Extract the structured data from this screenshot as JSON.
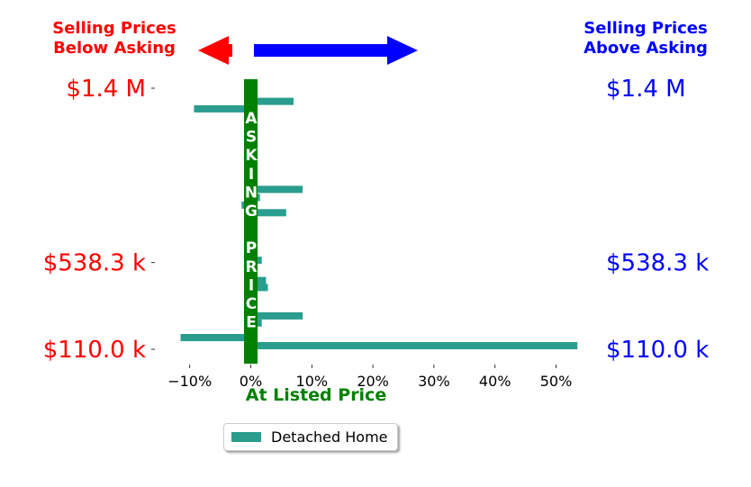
{
  "header": {
    "left_line1": "Selling Prices",
    "left_line2": "Below Asking",
    "right_line1": "Selling Prices",
    "right_line2": "Above Asking"
  },
  "center_label": {
    "vertical_text": "ASKING PRICE",
    "bottom_text": "At Listed Price"
  },
  "colors": {
    "bar": "#2a9d8f",
    "center_band": "#008000",
    "below": "#ff0000",
    "above": "#0000ff",
    "arrow_left": "#ff0000",
    "arrow_right": "#0000ff"
  },
  "legend": {
    "label": "Detached Home"
  },
  "chart_data": {
    "type": "bar",
    "orientation": "horizontal",
    "xlabel": "At Listed Price",
    "xlim": [
      -14.5,
      53.5
    ],
    "xticks": [
      -10,
      0,
      10,
      20,
      30,
      40,
      50
    ],
    "xtick_labels": [
      "−10%",
      "0%",
      "10%",
      "20%",
      "30%",
      "40%",
      "50%"
    ],
    "ylim": [
      100000,
      1500000
    ],
    "yticks": [
      1400000,
      538300,
      110000
    ],
    "ytick_labels_left": [
      "$1.4 M",
      "$538.3 k",
      "$110.0 k"
    ],
    "ytick_labels_right": [
      "$1.4 M",
      "$538.3 k",
      "$110.0 k"
    ],
    "series": [
      {
        "name": "Detached Home",
        "points": [
          {
            "price": 1425000,
            "pct": 0.3
          },
          {
            "price": 1395000,
            "pct": 0.5
          },
          {
            "price": 1365000,
            "pct": 0.2
          },
          {
            "price": 1335000,
            "pct": 7.0
          },
          {
            "price": 1298000,
            "pct": -9.3
          },
          {
            "price": 1245000,
            "pct": 0.4
          },
          {
            "price": 1165000,
            "pct": 0.3
          },
          {
            "price": 1110000,
            "pct": 0.5
          },
          {
            "price": 900000,
            "pct": 8.5
          },
          {
            "price": 860000,
            "pct": 1.5
          },
          {
            "price": 822000,
            "pct": -1.5
          },
          {
            "price": 785000,
            "pct": 5.8
          },
          {
            "price": 742000,
            "pct": 0.4
          },
          {
            "price": 700000,
            "pct": 0.5
          },
          {
            "price": 638000,
            "pct": 0.3
          },
          {
            "price": 550000,
            "pct": 1.8
          },
          {
            "price": 515000,
            "pct": 0.6
          },
          {
            "price": 450000,
            "pct": 2.5
          },
          {
            "price": 415000,
            "pct": 2.8
          },
          {
            "price": 378000,
            "pct": 0.2
          },
          {
            "price": 325000,
            "pct": 0.5
          },
          {
            "price": 275000,
            "pct": 8.5
          },
          {
            "price": 240000,
            "pct": 1.8
          },
          {
            "price": 205000,
            "pct": -0.3
          },
          {
            "price": 185000,
            "pct": 0.2
          },
          {
            "price": 168000,
            "pct": -11.5
          },
          {
            "price": 128000,
            "pct": 53.5
          },
          {
            "price": 95000,
            "pct": 0.2
          }
        ]
      }
    ]
  }
}
